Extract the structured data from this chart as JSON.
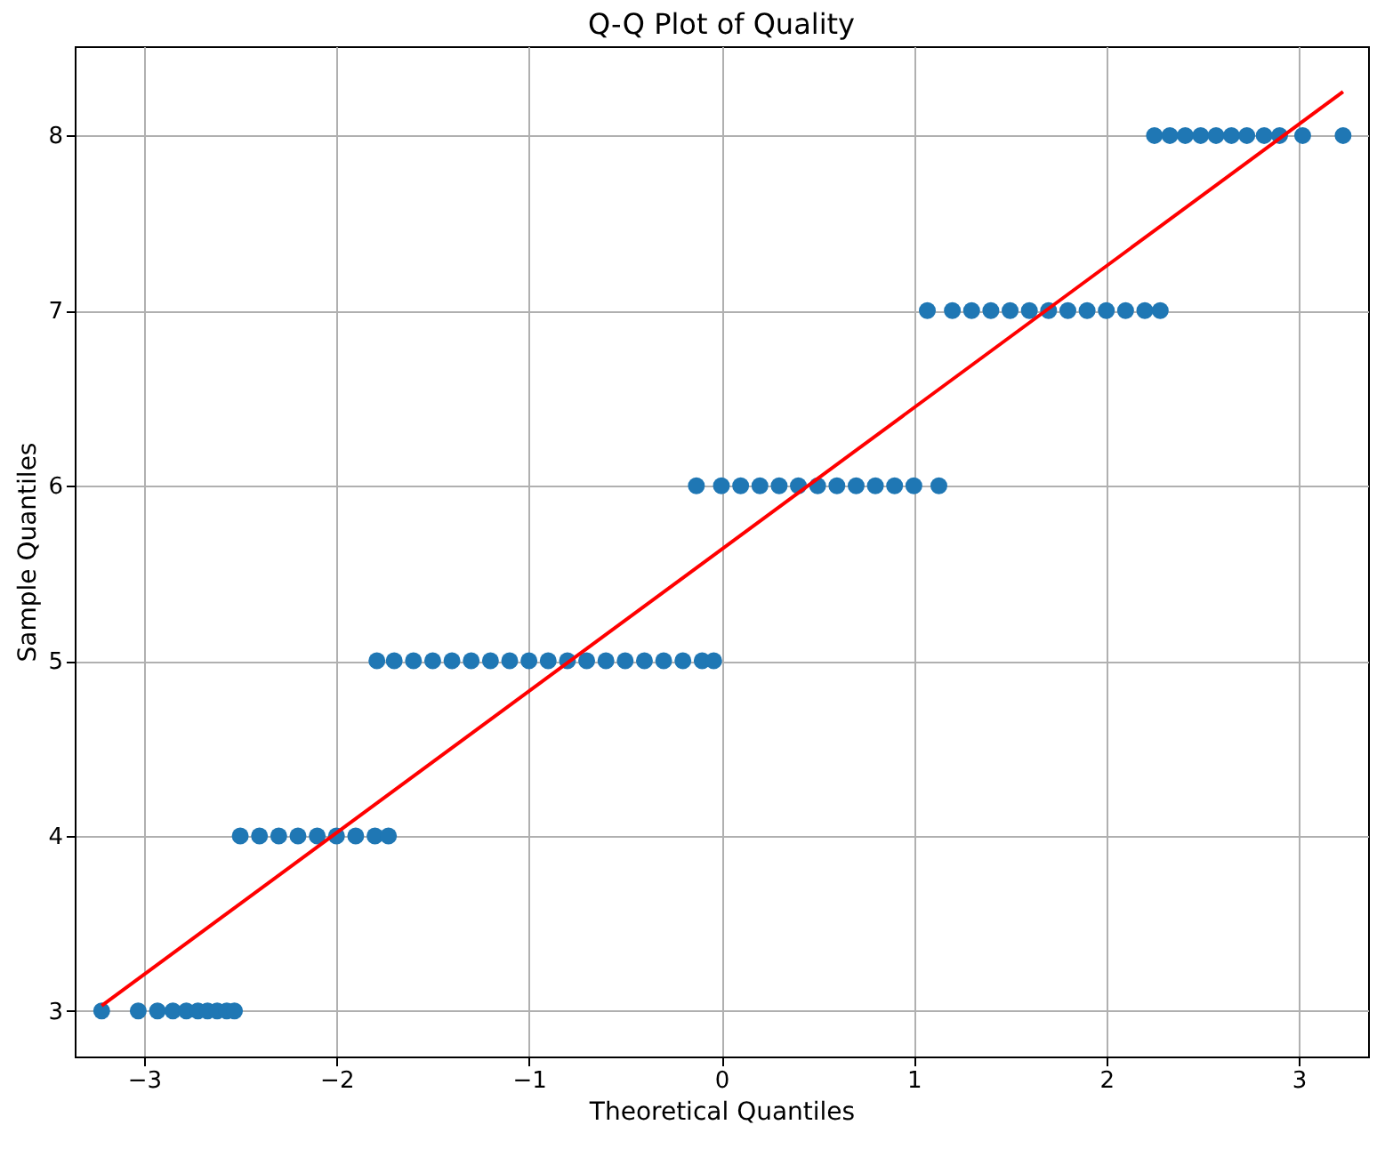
{
  "chart_data": {
    "type": "scatter",
    "title": "Q-Q Plot of Quality",
    "xlabel": "Theoretical Quantiles",
    "ylabel": "Sample Quantiles",
    "xlim": [
      -3.36,
      3.36
    ],
    "ylim": [
      2.74,
      8.51
    ],
    "xticks": [
      -3,
      -2,
      -1,
      0,
      1,
      2,
      3
    ],
    "yticks": [
      3,
      4,
      5,
      6,
      7,
      8
    ],
    "grid": true,
    "series": [
      {
        "marker": "circle",
        "color": "#1f77b4",
        "x": [
          -3.22,
          -3.03,
          -2.93,
          -2.85,
          -2.78,
          -2.72,
          -2.67,
          -2.62,
          -2.57,
          -2.53,
          -2.5,
          -2.4,
          -2.3,
          -2.2,
          -2.1,
          -2.0,
          -1.9,
          -1.8,
          -1.73,
          -1.79,
          -1.7,
          -1.6,
          -1.5,
          -1.4,
          -1.3,
          -1.2,
          -1.1,
          -1.0,
          -0.9,
          -0.8,
          -0.7,
          -0.6,
          -0.5,
          -0.4,
          -0.3,
          -0.2,
          -0.1,
          -0.04,
          -0.13,
          0.0,
          0.1,
          0.2,
          0.3,
          0.4,
          0.5,
          0.6,
          0.7,
          0.8,
          0.9,
          1.0,
          1.13,
          1.07,
          1.2,
          1.3,
          1.4,
          1.5,
          1.6,
          1.7,
          1.8,
          1.9,
          2.0,
          2.1,
          2.2,
          2.28,
          2.25,
          2.33,
          2.41,
          2.49,
          2.57,
          2.65,
          2.73,
          2.82,
          2.9,
          3.02,
          3.23
        ],
        "values": [
          3,
          3,
          3,
          3,
          3,
          3,
          3,
          3,
          3,
          3,
          4,
          4,
          4,
          4,
          4,
          4,
          4,
          4,
          4,
          5,
          5,
          5,
          5,
          5,
          5,
          5,
          5,
          5,
          5,
          5,
          5,
          5,
          5,
          5,
          5,
          5,
          5,
          5,
          6,
          6,
          6,
          6,
          6,
          6,
          6,
          6,
          6,
          6,
          6,
          6,
          6,
          7,
          7,
          7,
          7,
          7,
          7,
          7,
          7,
          7,
          7,
          7,
          7,
          7,
          8,
          8,
          8,
          8,
          8,
          8,
          8,
          8,
          8,
          8,
          8
        ]
      },
      {
        "type": "line",
        "color": "#ff0000",
        "x": [
          -3.22,
          3.23
        ],
        "values": [
          3.03,
          8.25
        ]
      }
    ]
  }
}
